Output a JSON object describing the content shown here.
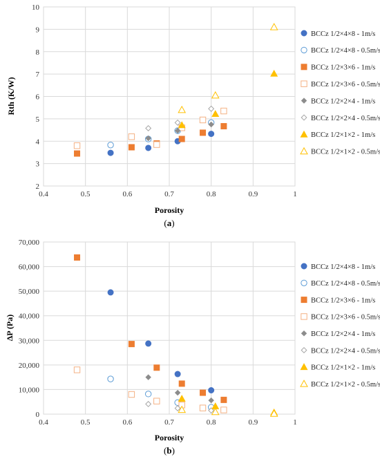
{
  "series_styles": [
    {
      "name": "BCCz 1/2×4×8 - 1m/s",
      "marker": "circle",
      "filled": true,
      "color": "#4472C4"
    },
    {
      "name": "BCCz 1/2×4×8 - 0.5m/s",
      "marker": "circle",
      "filled": false,
      "color": "#5B9BD5"
    },
    {
      "name": "BCCz 1/2×3×6 - 1m/s",
      "marker": "square",
      "filled": true,
      "color": "#ED7D31"
    },
    {
      "name": "BCCz 1/2×3×6 - 0.5m/s",
      "marker": "square",
      "filled": false,
      "color": "#F4B183"
    },
    {
      "name": "BCCz 1/2×2×4 - 1m/s",
      "marker": "diamond",
      "filled": true,
      "color": "#8C8C8C"
    },
    {
      "name": "BCCz 1/2×2×4 - 0.5m/s",
      "marker": "diamond",
      "filled": false,
      "color": "#A5A5A5"
    },
    {
      "name": "BCCz 1/2×1×2 - 1m/s",
      "marker": "triangle",
      "filled": true,
      "color": "#FFC000"
    },
    {
      "name": "BCCz 1/2×1×2 - 0.5m/s",
      "marker": "triangle",
      "filled": false,
      "color": "#FFC000"
    }
  ],
  "chart_data": [
    {
      "type": "scatter",
      "panel_label": "(a)",
      "xlabel": "Porosity",
      "ylabel": "Rth (K/W)",
      "xlim": [
        0.4,
        1
      ],
      "ylim": [
        2,
        10
      ],
      "xticks": [
        0.4,
        0.5,
        0.6,
        0.7,
        0.8,
        0.9,
        1
      ],
      "xtick_labels": [
        "0.4",
        "0.5",
        "0.6",
        "0.7",
        "0.8",
        "0.9",
        "1"
      ],
      "yticks": [
        2,
        3,
        4,
        5,
        6,
        7,
        8,
        9,
        10
      ],
      "ytick_labels": [
        "2",
        "3",
        "4",
        "5",
        "6",
        "7",
        "8",
        "9",
        "10"
      ],
      "grid": true,
      "legend_position": "right",
      "series": [
        {
          "name": "BCCz 1/2×4×8 - 1m/s",
          "x": [
            0.56,
            0.65,
            0.72,
            0.8
          ],
          "y": [
            3.48,
            3.7,
            4.0,
            4.33
          ]
        },
        {
          "name": "BCCz 1/2×4×8 - 0.5m/s",
          "x": [
            0.56,
            0.65,
            0.72,
            0.8
          ],
          "y": [
            3.83,
            4.1,
            4.47,
            4.83
          ]
        },
        {
          "name": "BCCz 1/2×3×6 - 1m/s",
          "x": [
            0.48,
            0.61,
            0.67,
            0.73,
            0.78,
            0.83
          ],
          "y": [
            3.45,
            3.73,
            3.9,
            4.1,
            4.38,
            4.67
          ]
        },
        {
          "name": "BCCz 1/2×3×6 - 0.5m/s",
          "x": [
            0.48,
            0.61,
            0.67,
            0.73,
            0.78,
            0.83
          ],
          "y": [
            3.8,
            4.2,
            3.85,
            4.6,
            4.95,
            5.35
          ]
        },
        {
          "name": "BCCz 1/2×2×4 - 1m/s",
          "x": [
            0.65,
            0.72,
            0.8
          ],
          "y": [
            4.13,
            4.47,
            4.75
          ]
        },
        {
          "name": "BCCz 1/2×2×4 - 0.5m/s",
          "x": [
            0.65,
            0.72,
            0.8
          ],
          "y": [
            4.58,
            4.83,
            5.45
          ]
        },
        {
          "name": "BCCz 1/2×1×2 - 1m/s",
          "x": [
            0.73,
            0.81,
            0.95
          ],
          "y": [
            4.72,
            5.22,
            7.02
          ]
        },
        {
          "name": "BCCz 1/2×1×2 - 0.5m/s",
          "x": [
            0.73,
            0.81,
            0.95
          ],
          "y": [
            5.4,
            6.05,
            9.1
          ]
        }
      ]
    },
    {
      "type": "scatter",
      "panel_label": "(b)",
      "xlabel": "Porosity",
      "ylabel": "ΔP (Pa)",
      "xlim": [
        0.4,
        1
      ],
      "ylim": [
        0,
        70000
      ],
      "xticks": [
        0.4,
        0.5,
        0.6,
        0.7,
        0.8,
        0.9,
        1
      ],
      "xtick_labels": [
        "0.4",
        "0.5",
        "0.6",
        "0.7",
        "0.8",
        "0.9",
        "1"
      ],
      "yticks": [
        0,
        10000,
        20000,
        30000,
        40000,
        50000,
        60000,
        70000
      ],
      "ytick_labels": [
        "0",
        "10,000",
        "20,000",
        "30,000",
        "40,000",
        "50,000",
        "60,000",
        "70,000"
      ],
      "grid": true,
      "legend_position": "right",
      "series": [
        {
          "name": "BCCz 1/2×4×8 - 1m/s",
          "x": [
            0.56,
            0.65,
            0.72,
            0.8
          ],
          "y": [
            49500,
            28700,
            16300,
            9700
          ]
        },
        {
          "name": "BCCz 1/2×4×8 - 0.5m/s",
          "x": [
            0.56,
            0.65,
            0.72,
            0.8
          ],
          "y": [
            14300,
            8200,
            4700,
            2800
          ]
        },
        {
          "name": "BCCz 1/2×3×6 - 1m/s",
          "x": [
            0.48,
            0.61,
            0.67,
            0.73,
            0.78,
            0.83
          ],
          "y": [
            63700,
            28500,
            18900,
            12400,
            8700,
            5800
          ]
        },
        {
          "name": "BCCz 1/2×3×6 - 0.5m/s",
          "x": [
            0.48,
            0.61,
            0.67,
            0.73,
            0.78,
            0.83
          ],
          "y": [
            18000,
            8000,
            5300,
            3700,
            2500,
            1700
          ]
        },
        {
          "name": "BCCz 1/2×2×4 - 1m/s",
          "x": [
            0.65,
            0.72,
            0.8
          ],
          "y": [
            15000,
            8700,
            5600
          ]
        },
        {
          "name": "BCCz 1/2×2×4 - 0.5m/s",
          "x": [
            0.65,
            0.72,
            0.8
          ],
          "y": [
            4100,
            2400,
            1500
          ]
        },
        {
          "name": "BCCz 1/2×1×2 - 1m/s",
          "x": [
            0.73,
            0.81,
            0.95
          ],
          "y": [
            6300,
            3200,
            700
          ]
        },
        {
          "name": "BCCz 1/2×1×2 - 0.5m/s",
          "x": [
            0.73,
            0.81,
            0.95
          ],
          "y": [
            1800,
            900,
            200
          ]
        }
      ]
    }
  ]
}
